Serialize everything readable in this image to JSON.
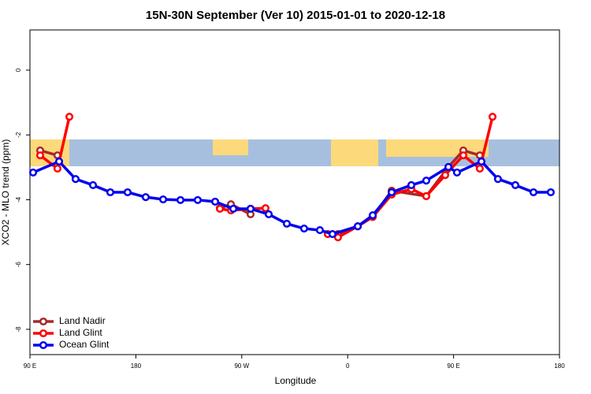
{
  "chart_data": {
    "type": "line",
    "title": "15N-30N September (Ver 10)   2015-01-01 to 2020-12-18",
    "x_label": "Longitude",
    "y_label": "XCO2 - MLO trend (ppm)",
    "xlim": [
      90,
      540
    ],
    "ylim": [
      -8.78,
      1.24
    ],
    "xticks": [
      {
        "value": 90,
        "label": "90 E"
      },
      180,
      {
        "value": 270,
        "label": "90 W"
      },
      {
        "value": 360,
        "label": "0"
      },
      {
        "value": 450,
        "label": "90 E"
      },
      {
        "value": 540,
        "label": "180"
      }
    ],
    "yticks": [
      -8,
      -6,
      -4,
      -2,
      0
    ],
    "legend": "bottom-left",
    "series": [
      {
        "name": "Land Nadir",
        "color": "#a52a2a",
        "x": [
          98.7,
          113.4,
          null,
          251.4,
          260.8,
          277.5,
          null,
          343.1,
          351.8,
          368.6,
          381.3,
          397.4,
          426.8,
          445.6,
          458.3,
          472.3
        ],
        "values": [
          -2.48,
          -2.63,
          null,
          -4.26,
          -4.14,
          -4.45,
          null,
          -5.06,
          -5.06,
          -4.82,
          -4.53,
          -3.72,
          -3.89,
          -2.99,
          -2.48,
          -2.63
        ]
      },
      {
        "name": "Land Glint",
        "color": "#ff0000",
        "x": [
          98.7,
          113.4,
          123.5,
          null,
          251.4,
          260.8,
          277.5,
          290.2,
          null,
          343.1,
          351.8,
          368.6,
          381.3,
          397.4,
          414.1,
          426.8,
          442.9,
          458.3,
          472.3,
          483.1
        ],
        "values": [
          -2.63,
          -3.04,
          -1.44,
          null,
          -4.28,
          -4.33,
          -4.28,
          -4.26,
          null,
          -5.06,
          -5.16,
          -4.82,
          -4.53,
          -3.84,
          -3.67,
          -3.89,
          -3.24,
          -2.63,
          -3.04,
          -1.44
        ]
      },
      {
        "name": "Ocean Glint",
        "color": "#0000ee",
        "x": [
          92.7,
          114.8,
          128.8,
          143.6,
          158.3,
          173.0,
          188.4,
          203.2,
          217.9,
          232.6,
          247.4,
          262.8,
          277.5,
          292.9,
          308.3,
          323.0,
          336.4,
          347.1,
          368.6,
          381.3,
          397.4,
          414.1,
          426.8,
          445.6,
          452.9,
          473.7,
          487.7,
          502.5,
          517.9,
          532.6
        ],
        "values": [
          -3.16,
          -2.82,
          -3.36,
          -3.55,
          -3.77,
          -3.77,
          -3.92,
          -3.99,
          -4.01,
          -4.01,
          -4.06,
          -4.28,
          -4.28,
          -4.45,
          -4.74,
          -4.89,
          -4.94,
          -5.06,
          -4.82,
          -4.48,
          -3.77,
          -3.55,
          -3.41,
          -2.99,
          -3.16,
          -2.82,
          -3.36,
          -3.55,
          -3.77,
          -3.77
        ]
      }
    ]
  }
}
